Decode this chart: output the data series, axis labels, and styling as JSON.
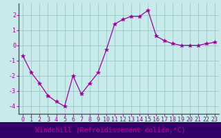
{
  "x": [
    0,
    1,
    2,
    3,
    4,
    5,
    6,
    7,
    8,
    9,
    10,
    11,
    12,
    13,
    14,
    15,
    16,
    17,
    18,
    19,
    20,
    21,
    22,
    23
  ],
  "y": [
    -0.7,
    -1.8,
    -2.5,
    -3.3,
    -3.7,
    -4.0,
    -2.0,
    -3.2,
    -2.5,
    -1.8,
    -0.3,
    1.4,
    1.7,
    1.9,
    1.9,
    2.3,
    0.6,
    0.3,
    0.1,
    0.0,
    0.0,
    0.0,
    0.1,
    0.2
  ],
  "line_color": "#990099",
  "marker": "*",
  "marker_size": 4,
  "bg_color": "#c8eaea",
  "grid_color": "#a0cccc",
  "tick_label_color": "#990099",
  "spine_color": "#555555",
  "xlabel": "Windchill (Refroidissement éolien,°C)",
  "xlabel_color": "#990099",
  "xlabel_bg": "#330066",
  "xlim": [
    -0.5,
    23.5
  ],
  "ylim": [
    -4.5,
    2.75
  ],
  "yticks": [
    -4,
    -3,
    -2,
    -1,
    0,
    1,
    2
  ],
  "xticks": [
    0,
    1,
    2,
    3,
    4,
    5,
    6,
    7,
    8,
    9,
    10,
    11,
    12,
    13,
    14,
    15,
    16,
    17,
    18,
    19,
    20,
    21,
    22,
    23
  ],
  "tick_label_fontsize": 6.0,
  "xlabel_fontsize": 7.0
}
